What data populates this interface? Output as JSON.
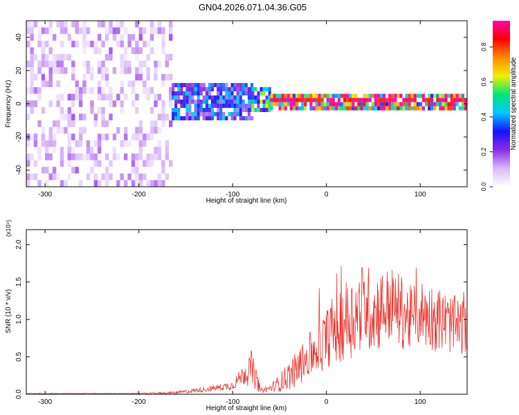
{
  "figure": {
    "title": "GN04.2026.071.04.36.G05"
  },
  "colors": {
    "snr_line": "#e8302a",
    "colormap": [
      "#ffffff",
      "#d9b8ff",
      "#8a2be2",
      "#1a10ff",
      "#00c8ff",
      "#00e676",
      "#f0f000",
      "#ff8c00",
      "#ff0000",
      "#ff00aa"
    ]
  },
  "chart_data": [
    {
      "type": "heatmap",
      "xlabel": "Height of straight line (km)",
      "ylabel": "Frequency (Hz)",
      "xlim": [
        -320,
        150
      ],
      "ylim": [
        -50,
        50
      ],
      "xticks": [
        "-300",
        "-200",
        "-100",
        "0",
        "100"
      ],
      "xtick_values": [
        -300,
        -200,
        -100,
        0,
        100
      ],
      "yticks": [
        "-40",
        "-20",
        "0",
        "20",
        "40"
      ],
      "ytick_values": [
        -40,
        -20,
        0,
        20,
        40
      ],
      "colorbar": {
        "label": "Normalized spectral amplitude",
        "range": [
          0,
          0.95
        ],
        "ticks": [
          "0.0",
          "0.2",
          "0.4",
          "0.6",
          "0.8"
        ],
        "tick_values": [
          0.0,
          0.2,
          0.4,
          0.6,
          0.8
        ]
      },
      "description_regions": [
        {
          "x_range": [
            -320,
            -165
          ],
          "freq_range": [
            -50,
            50
          ],
          "amplitude": 0.15
        },
        {
          "x_range": [
            -165,
            -80
          ],
          "freq_range": [
            -10,
            12
          ],
          "amplitude": 0.35
        },
        {
          "x_range": [
            -80,
            -60
          ],
          "freq_range": [
            -5,
            10
          ],
          "amplitude": 0.5
        },
        {
          "x_range": [
            -60,
            150
          ],
          "freq_range": [
            -4,
            4
          ],
          "amplitude": 0.8
        }
      ]
    },
    {
      "type": "line",
      "xlabel": "Height of straight line (km)",
      "ylabel": "SNR (10 * v/v)",
      "y_multiplier": "(x10⁴)",
      "xlim": [
        -320,
        150
      ],
      "ylim": [
        0,
        2.2
      ],
      "xticks": [
        "-300",
        "-200",
        "-100",
        "0",
        "100"
      ],
      "xtick_values": [
        -300,
        -200,
        -100,
        0,
        100
      ],
      "yticks": [
        "0.0",
        "0.5",
        "1.0",
        "1.5",
        "2.0"
      ],
      "ytick_values": [
        0.0,
        0.5,
        1.0,
        1.5,
        2.0
      ],
      "series": [
        {
          "x": [
            -320,
            -250,
            -200,
            -160,
            -140,
            -120,
            -100,
            -90,
            -80,
            -75,
            -70,
            -60,
            -50,
            -40,
            -30,
            -20,
            -10,
            0,
            10,
            20,
            30,
            40,
            50,
            60,
            70,
            80,
            90,
            100,
            110,
            120,
            130,
            140,
            150
          ],
          "values": [
            0.01,
            0.01,
            0.01,
            0.02,
            0.05,
            0.08,
            0.12,
            0.25,
            0.35,
            0.2,
            0.05,
            0.08,
            0.15,
            0.25,
            0.35,
            0.5,
            0.6,
            0.75,
            0.9,
            1.0,
            1.05,
            1.2,
            1.1,
            1.15,
            1.2,
            1.1,
            1.0,
            1.1,
            1.05,
            1.0,
            0.95,
            0.9,
            0.9
          ],
          "spread": [
            0.005,
            0.005,
            0.005,
            0.02,
            0.03,
            0.04,
            0.06,
            0.12,
            0.25,
            0.15,
            0.03,
            0.05,
            0.12,
            0.2,
            0.25,
            0.3,
            0.35,
            0.4,
            0.5,
            0.55,
            0.55,
            0.6,
            0.55,
            0.55,
            0.5,
            0.5,
            0.45,
            0.45,
            0.45,
            0.45,
            0.4,
            0.4,
            0.35
          ]
        }
      ]
    }
  ]
}
